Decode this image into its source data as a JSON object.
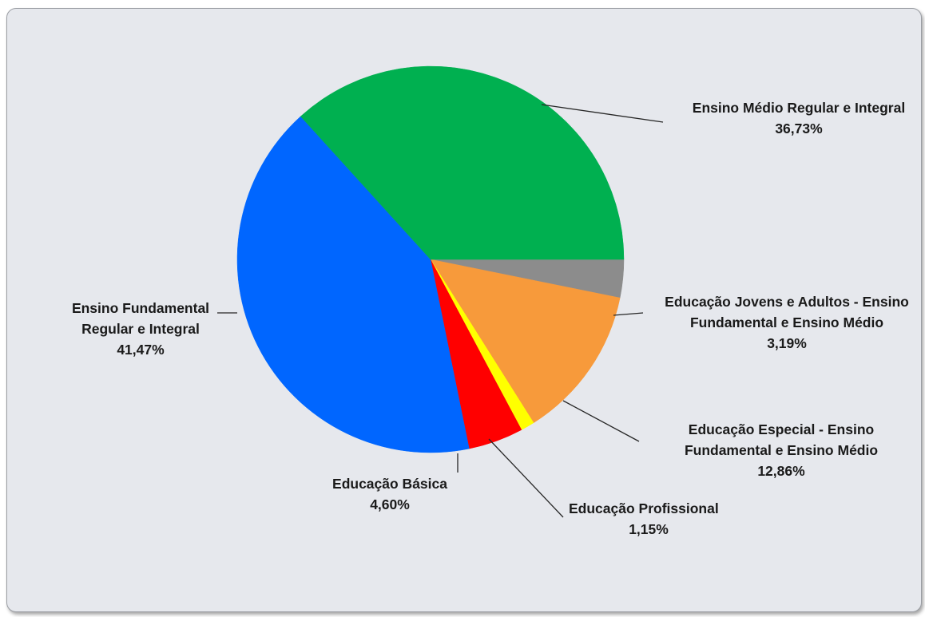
{
  "chart_data": {
    "type": "pie",
    "start_angle_deg": 0,
    "direction": "clockwise",
    "slices": [
      {
        "label_lines": [
          "Educação Jovens e Adultos - Ensino",
          "Fundamental e Ensino Médio"
        ],
        "percent_text": "3,19%",
        "value": 3.19,
        "color": "#8c8c8c"
      },
      {
        "label_lines": [
          "Educação Especial - Ensino",
          "Fundamental e Ensino Médio"
        ],
        "percent_text": "12,86%",
        "value": 12.86,
        "color": "#f79a3b"
      },
      {
        "label_lines": [
          "Educação Profissional"
        ],
        "percent_text": "1,15%",
        "value": 1.15,
        "color": "#ffff00"
      },
      {
        "label_lines": [
          "Educação Básica"
        ],
        "percent_text": "4,60%",
        "value": 4.6,
        "color": "#ff0000"
      },
      {
        "label_lines": [
          "Ensino Fundamental",
          "Regular e Integral"
        ],
        "percent_text": "41,47%",
        "value": 41.47,
        "color": "#0066ff"
      },
      {
        "label_lines": [
          "Ensino Médio Regular e Integral"
        ],
        "percent_text": "36,73%",
        "value": 36.73,
        "color": "#00b050"
      }
    ]
  }
}
